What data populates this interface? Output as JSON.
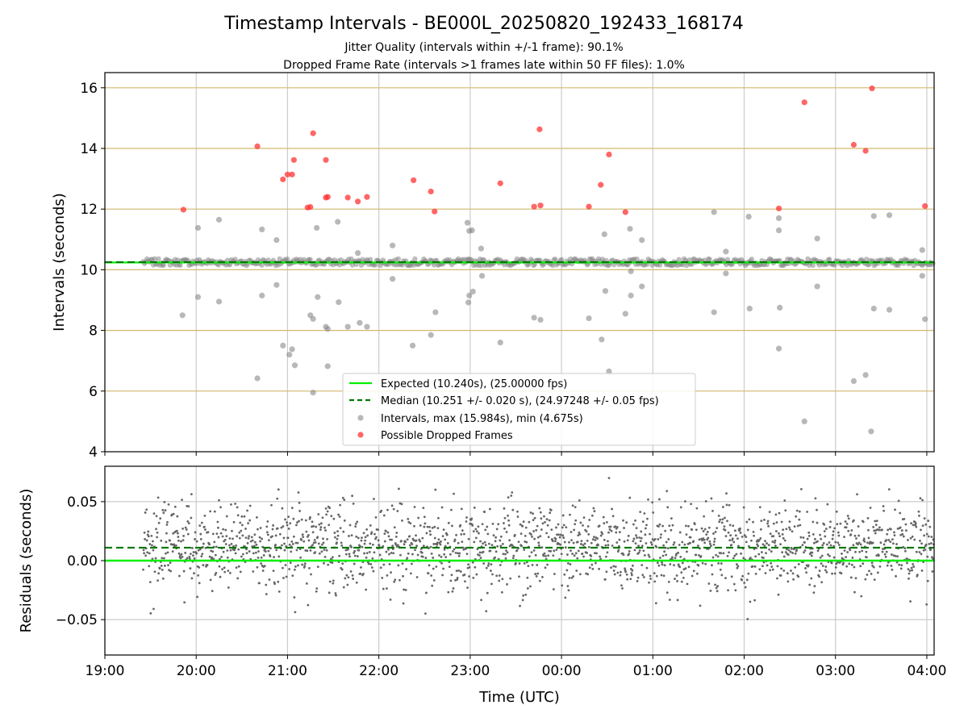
{
  "chart_data": {
    "title": "Timestamp Intervals - BE000L_20250820_192433_168174",
    "subtitle_lines": [
      "Jitter Quality (intervals within +/-1 frame): 90.1%",
      "Dropped Frame Rate (intervals >1 frames late within 50 FF files): 1.0%"
    ],
    "xlabel": "Time (UTC)",
    "x_tick_labels": [
      "19:00",
      "20:00",
      "21:00",
      "22:00",
      "23:00",
      "00:00",
      "01:00",
      "02:00",
      "03:00",
      "04:00"
    ],
    "colors": {
      "expected": "#00ee00",
      "median": "#007700",
      "interval": "#888888",
      "dropped": "#ff3333",
      "hgrid_top": "#d2b96e",
      "grid": "#cccccc",
      "residual": "#666666"
    },
    "panels": [
      {
        "type": "scatter",
        "ylabel": "Intervals (seconds)",
        "ylim": [
          4,
          16.5
        ],
        "xlim_hours": [
          19.0,
          28.08
        ],
        "yticks": [
          4,
          6,
          8,
          10,
          12,
          14,
          16
        ],
        "ytick_labels": [
          "4",
          "6",
          "8",
          "10",
          "12",
          "14",
          "16"
        ],
        "expected_line": 10.24,
        "median_line": 10.251,
        "legend_position": "lower-center",
        "legend": [
          "Expected (10.240s), (25.00000 fps)",
          "Median (10.251 +/- 0.020 s), (24.97248 +/- 0.05 fps)",
          "Intervals, max (15.984s), min (4.675s)",
          "Possible Dropped Frames"
        ],
        "series": [
          {
            "name": "Possible Dropped Frames",
            "points": [
              [
                19.86,
                11.98
              ],
              [
                20.67,
                14.07
              ],
              [
                20.95,
                12.98
              ],
              [
                21.0,
                13.14
              ],
              [
                21.05,
                13.14
              ],
              [
                21.07,
                13.62
              ],
              [
                21.22,
                12.05
              ],
              [
                21.25,
                12.07
              ],
              [
                21.28,
                14.5
              ],
              [
                21.42,
                13.62
              ],
              [
                21.42,
                12.38
              ],
              [
                21.44,
                12.4
              ],
              [
                21.66,
                12.38
              ],
              [
                21.77,
                12.25
              ],
              [
                21.87,
                12.4
              ],
              [
                22.38,
                12.95
              ],
              [
                22.57,
                12.58
              ],
              [
                22.61,
                11.92
              ],
              [
                23.33,
                12.85
              ],
              [
                23.7,
                12.08
              ],
              [
                23.76,
                14.63
              ],
              [
                23.77,
                12.12
              ],
              [
                24.3,
                12.08
              ],
              [
                24.43,
                12.8
              ],
              [
                24.52,
                13.8
              ],
              [
                24.7,
                11.9
              ],
              [
                26.38,
                12.02
              ],
              [
                26.66,
                15.52
              ],
              [
                27.2,
                14.12
              ],
              [
                27.33,
                13.92
              ],
              [
                27.4,
                15.98
              ],
              [
                27.98,
                12.1
              ]
            ]
          },
          {
            "name": "Intervals, max (15.984s), min (4.675s)",
            "points": [
              [
                19.85,
                8.5
              ],
              [
                20.02,
                11.38
              ],
              [
                20.02,
                9.1
              ],
              [
                20.25,
                11.65
              ],
              [
                20.25,
                8.95
              ],
              [
                20.67,
                6.42
              ],
              [
                20.72,
                11.33
              ],
              [
                20.72,
                9.15
              ],
              [
                20.88,
                10.98
              ],
              [
                20.88,
                9.5
              ],
              [
                20.95,
                7.5
              ],
              [
                21.02,
                7.2
              ],
              [
                21.05,
                7.38
              ],
              [
                21.08,
                6.85
              ],
              [
                21.25,
                8.5
              ],
              [
                21.28,
                8.38
              ],
              [
                21.28,
                5.95
              ],
              [
                21.32,
                11.38
              ],
              [
                21.33,
                9.1
              ],
              [
                21.42,
                8.12
              ],
              [
                21.44,
                8.05
              ],
              [
                21.44,
                6.82
              ],
              [
                21.55,
                11.58
              ],
              [
                21.56,
                8.93
              ],
              [
                21.66,
                8.12
              ],
              [
                21.77,
                10.55
              ],
              [
                21.79,
                8.25
              ],
              [
                21.87,
                8.12
              ],
              [
                22.15,
                10.8
              ],
              [
                22.15,
                9.7
              ],
              [
                22.37,
                7.5
              ],
              [
                22.57,
                7.85
              ],
              [
                22.62,
                8.6
              ],
              [
                22.97,
                11.55
              ],
              [
                22.99,
                11.28
              ],
              [
                23.02,
                11.3
              ],
              [
                22.98,
                8.92
              ],
              [
                22.99,
                9.15
              ],
              [
                23.03,
                9.28
              ],
              [
                23.12,
                10.7
              ],
              [
                23.13,
                9.8
              ],
              [
                23.33,
                7.6
              ],
              [
                23.7,
                8.42
              ],
              [
                23.77,
                8.35
              ],
              [
                24.3,
                8.4
              ],
              [
                24.44,
                7.7
              ],
              [
                24.47,
                11.17
              ],
              [
                24.48,
                9.3
              ],
              [
                24.52,
                6.65
              ],
              [
                24.7,
                8.55
              ],
              [
                24.75,
                11.35
              ],
              [
                24.76,
                9.95
              ],
              [
                24.76,
                9.15
              ],
              [
                24.88,
                10.98
              ],
              [
                24.88,
                9.45
              ],
              [
                25.67,
                11.9
              ],
              [
                25.67,
                8.6
              ],
              [
                25.8,
                10.6
              ],
              [
                25.8,
                9.88
              ],
              [
                26.05,
                11.75
              ],
              [
                26.06,
                8.72
              ],
              [
                26.38,
                11.7
              ],
              [
                26.38,
                11.3
              ],
              [
                26.38,
                7.4
              ],
              [
                26.39,
                8.75
              ],
              [
                26.66,
                5.0
              ],
              [
                26.8,
                11.03
              ],
              [
                26.8,
                9.45
              ],
              [
                27.2,
                6.33
              ],
              [
                27.33,
                6.53
              ],
              [
                27.39,
                4.67
              ],
              [
                27.42,
                11.77
              ],
              [
                27.42,
                8.72
              ],
              [
                27.59,
                11.8
              ],
              [
                27.59,
                8.68
              ],
              [
                27.95,
                10.65
              ],
              [
                27.95,
                9.8
              ],
              [
                27.98,
                8.37
              ]
            ]
          }
        ]
      },
      {
        "type": "scatter",
        "ylabel": "Residuals (seconds)",
        "ylim": [
          -0.08,
          0.08
        ],
        "yticks": [
          -0.05,
          0.0,
          0.05
        ],
        "ytick_labels": [
          "−0.05",
          "0.00",
          "0.05"
        ],
        "expected_line": 0.0,
        "median_line": 0.011,
        "noise": {
          "n": 1900,
          "x_start_hours": 19.42,
          "x_end_hours": 28.08,
          "center": 0.0115,
          "sd": 0.0185,
          "clip": [
            -0.075,
            0.07
          ]
        }
      }
    ]
  }
}
